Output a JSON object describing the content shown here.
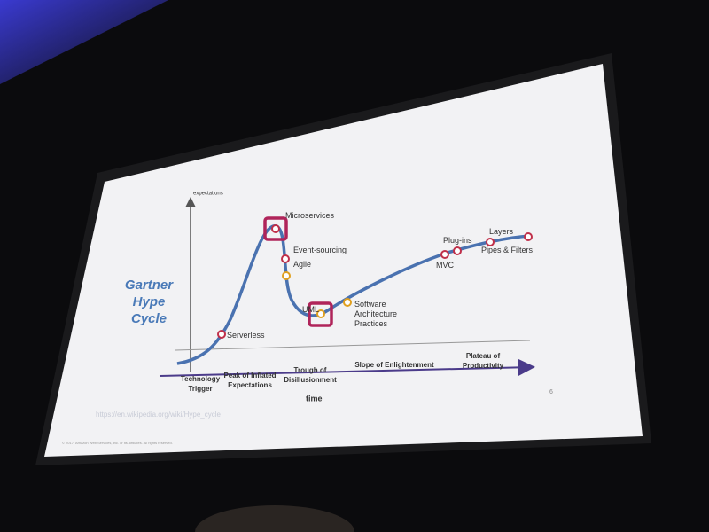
{
  "slide": {
    "title": [
      "Gartner",
      "Hype",
      "Cycle"
    ],
    "y_axis_label": "expectations",
    "x_axis_label": "time",
    "phases": [
      [
        "Technology",
        "Trigger"
      ],
      [
        "Peak of Inflated",
        "Expectations"
      ],
      [
        "Trough of",
        "Disillusionment"
      ],
      [
        "Slope of Enlightenment"
      ],
      [
        "Plateau of",
        "Productivity"
      ]
    ],
    "points": [
      [
        "Serverless"
      ],
      [
        "Microservices"
      ],
      [
        "Event-sourcing"
      ],
      [
        "Agile"
      ],
      [
        "UML"
      ],
      [
        "Software",
        "Architecture",
        "Practices"
      ],
      [
        "MVC"
      ],
      [
        "Plug-ins"
      ],
      [
        "Layers"
      ],
      [
        "Pipes & Filters"
      ]
    ],
    "source_url": "https://en.wikipedia.org/wiki/Hype_cycle",
    "copyright": "© 2017, Amazon Web Services, Inc. or its Affiliates. All rights reserved.",
    "page_number": "6"
  }
}
